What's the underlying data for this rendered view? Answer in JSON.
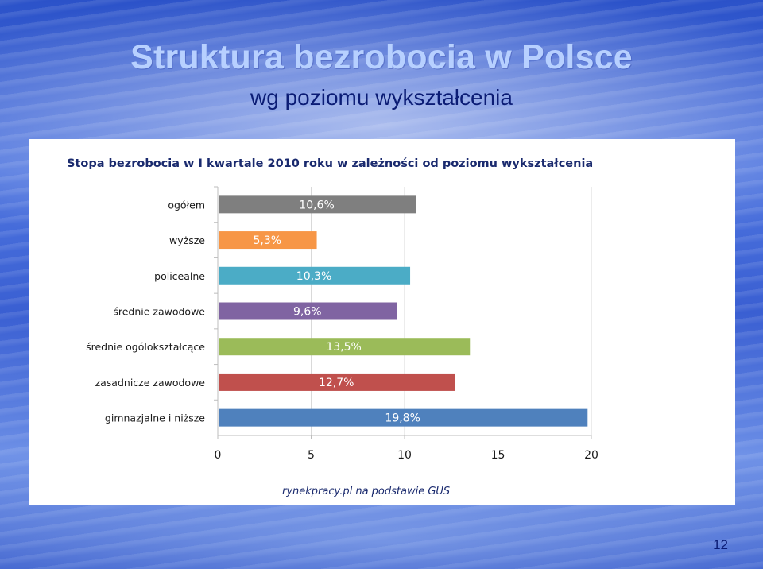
{
  "slide": {
    "title": "Struktura bezrobocia w Polsce",
    "subtitle": "wg poziomu wykształcenia",
    "page_number": "12"
  },
  "chart_data": {
    "type": "bar",
    "orientation": "horizontal",
    "title": "Stopa bezrobocia w I kwartale 2010 roku w zależności od poziomu wykształcenia",
    "categories": [
      "ogółem",
      "wyższe",
      "policealne",
      "średnie zawodowe",
      "średnie ogólokształcące",
      "zasadnicze zawodowe",
      "gimnazjalne i niższe"
    ],
    "values": [
      10.6,
      5.3,
      10.3,
      9.6,
      13.5,
      12.7,
      19.8
    ],
    "value_labels": [
      "10,6%",
      "5,3%",
      "10,3%",
      "9,6%",
      "13,5%",
      "12,7%",
      "19,8%"
    ],
    "colors": [
      "#7f7f7f",
      "#f79646",
      "#4bacc6",
      "#8064a2",
      "#9bbb59",
      "#c0504d",
      "#4f81bd"
    ],
    "xlim": [
      0,
      20
    ],
    "xticks": [
      0,
      5,
      10,
      15,
      20
    ],
    "xlabel": "",
    "ylabel": "",
    "grid": true,
    "source": "rynekpracy.pl na podstawie GUS"
  }
}
